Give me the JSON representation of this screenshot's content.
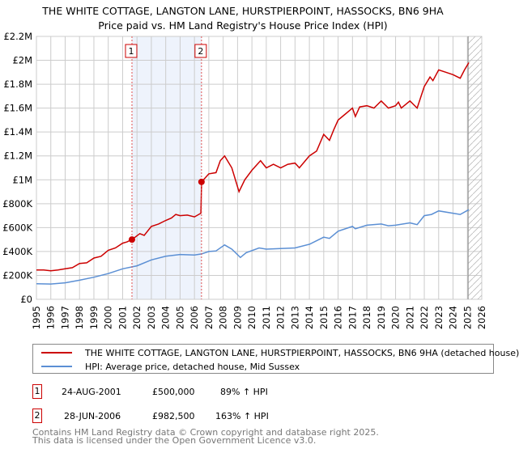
{
  "chart_data": {
    "type": "line",
    "title": "THE WHITE COTTAGE, LANGTON LANE, HURSTPIERPOINT, HASSOCKS, BN6 9HA",
    "subtitle": "Price paid vs. HM Land Registry's House Price Index (HPI)",
    "xlabel": "",
    "ylabel": "",
    "xlim": [
      1995,
      2026
    ],
    "ylim": [
      0,
      2200000
    ],
    "x_ticks": [
      "1995",
      "1996",
      "1997",
      "1998",
      "1999",
      "2000",
      "2001",
      "2002",
      "2003",
      "2004",
      "2005",
      "2006",
      "2007",
      "2008",
      "2009",
      "2010",
      "2011",
      "2012",
      "2013",
      "2014",
      "2015",
      "2016",
      "2017",
      "2018",
      "2019",
      "2020",
      "2021",
      "2022",
      "2023",
      "2024",
      "2025",
      "2026"
    ],
    "y_ticks": [
      {
        "value": 0,
        "label": "£0"
      },
      {
        "value": 200000,
        "label": "£200K"
      },
      {
        "value": 400000,
        "label": "£400K"
      },
      {
        "value": 600000,
        "label": "£600K"
      },
      {
        "value": 800000,
        "label": "£800K"
      },
      {
        "value": 1000000,
        "label": "£1M"
      },
      {
        "value": 1200000,
        "label": "£1.2M"
      },
      {
        "value": 1400000,
        "label": "£1.4M"
      },
      {
        "value": 1600000,
        "label": "£1.6M"
      },
      {
        "value": 1800000,
        "label": "£1.8M"
      },
      {
        "value": 2000000,
        "label": "£2M"
      },
      {
        "value": 2200000,
        "label": "£2.2M"
      }
    ],
    "grid": true,
    "shaded_range": [
      2001.65,
      2006.49
    ],
    "forecast_hatch_from": 2025.05,
    "series": [
      {
        "name": "THE WHITE COTTAGE, LANGTON LANE, HURSTPIERPOINT, HASSOCKS, BN6 9HA (detached house)",
        "color": "#cc0000",
        "x": [
          1995,
          1995.5,
          1996,
          1996.5,
          1997,
          1997.5,
          1998,
          1998.5,
          1999,
          1999.5,
          2000,
          2000.5,
          2001,
          2001.3,
          2001.65,
          2002.2,
          2002.5,
          2003,
          2003.5,
          2004,
          2004.4,
          2004.7,
          2005,
          2005.5,
          2006,
          2006.45,
          2006.5,
          2007,
          2007.5,
          2007.8,
          2008.1,
          2008.6,
          2009.1,
          2009.5,
          2010,
          2010.6,
          2011,
          2011.5,
          2012,
          2012.5,
          2013,
          2013.3,
          2014,
          2014.5,
          2015,
          2015.4,
          2015.7,
          2016,
          2016.5,
          2017,
          2017.2,
          2017.5,
          2018,
          2018.5,
          2019,
          2019.5,
          2020,
          2020.2,
          2020.4,
          2021,
          2021.5,
          2022,
          2022.4,
          2022.6,
          2023,
          2023.5,
          2024,
          2024.5,
          2024.8,
          2025.1
        ],
        "y": [
          245000,
          245000,
          238000,
          245000,
          255000,
          265000,
          300000,
          305000,
          345000,
          360000,
          410000,
          430000,
          470000,
          480000,
          500000,
          550000,
          535000,
          610000,
          630000,
          660000,
          680000,
          710000,
          700000,
          705000,
          690000,
          720000,
          982500,
          1050000,
          1060000,
          1160000,
          1200000,
          1100000,
          900000,
          1000000,
          1080000,
          1160000,
          1100000,
          1130000,
          1100000,
          1130000,
          1140000,
          1100000,
          1200000,
          1240000,
          1380000,
          1330000,
          1420000,
          1500000,
          1550000,
          1600000,
          1530000,
          1610000,
          1620000,
          1600000,
          1660000,
          1600000,
          1620000,
          1650000,
          1600000,
          1660000,
          1600000,
          1780000,
          1860000,
          1830000,
          1920000,
          1900000,
          1880000,
          1850000,
          1920000,
          1980000
        ]
      },
      {
        "name": "HPI: Average price, detached house, Mid Sussex",
        "color": "#5b8fd4",
        "x": [
          1995,
          1996,
          1997,
          1998,
          1999,
          2000,
          2001,
          2002,
          2003,
          2004,
          2005,
          2006,
          2006.5,
          2007,
          2007.5,
          2008.1,
          2008.6,
          2009.2,
          2009.6,
          2010.5,
          2011,
          2012,
          2013,
          2014,
          2015,
          2015.4,
          2016,
          2017,
          2017.2,
          2018,
          2019,
          2019.5,
          2020,
          2021,
          2021.5,
          2022,
          2022.5,
          2023,
          2024,
          2024.5,
          2025.1
        ],
        "y": [
          130000,
          128000,
          138000,
          160000,
          185000,
          215000,
          255000,
          280000,
          330000,
          360000,
          375000,
          370000,
          380000,
          400000,
          405000,
          455000,
          420000,
          350000,
          390000,
          430000,
          420000,
          425000,
          430000,
          460000,
          520000,
          510000,
          570000,
          610000,
          590000,
          620000,
          630000,
          615000,
          620000,
          640000,
          625000,
          700000,
          710000,
          740000,
          720000,
          710000,
          750000
        ]
      }
    ],
    "sales": [
      {
        "id": "1",
        "x": 2001.65,
        "value": 500000,
        "date": "24-AUG-2001",
        "price": "£500,000",
        "hpi": "89% ↑ HPI"
      },
      {
        "id": "2",
        "x": 2006.49,
        "value": 982500,
        "date": "28-JUN-2006",
        "price": "£982,500",
        "hpi": "163% ↑ HPI"
      }
    ],
    "legend_position": "below"
  },
  "legend": {
    "property": "THE WHITE COTTAGE, LANGTON LANE, HURSTPIERPOINT, HASSOCKS, BN6 9HA (detached house)",
    "hpi": "HPI: Average price, detached house, Mid Sussex"
  },
  "footer": {
    "line1": "Contains HM Land Registry data © Crown copyright and database right 2025.",
    "line2": "This data is licensed under the Open Government Licence v3.0."
  }
}
